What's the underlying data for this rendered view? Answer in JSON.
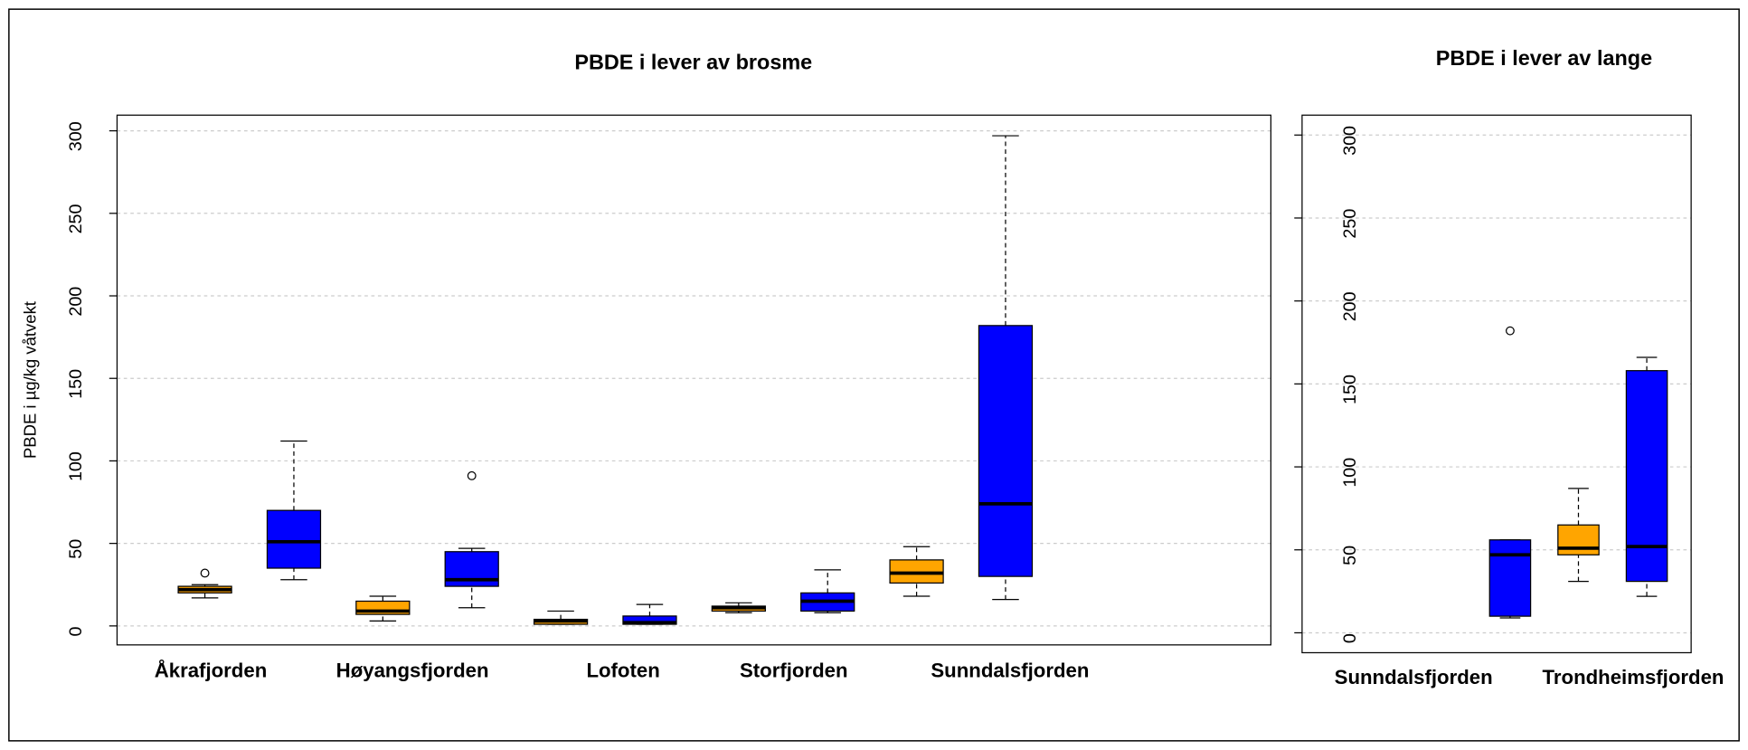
{
  "chart_data": [
    {
      "type": "box",
      "title": "PBDE i lever av brosme",
      "ylabel": "PBDE i µg/kg våtvekt",
      "categories": [
        "Åkrafjorden",
        "Høyangsfjorden",
        "Lofoten",
        "Storfjorden",
        "Sunndalsfjorden"
      ],
      "ylim": [
        -11.5,
        309.5
      ],
      "yticks": [
        0,
        50,
        100,
        150,
        200,
        250,
        300
      ],
      "grid": true,
      "series": [
        {
          "color": "#FFA500",
          "boxes": [
            {
              "whisker_low": 17,
              "q1": 20,
              "median": 22,
              "q3": 24,
              "whisker_high": 25,
              "outliers": [
                32
              ]
            },
            {
              "whisker_low": 3,
              "q1": 7,
              "median": 9,
              "q3": 15,
              "whisker_high": 18
            },
            {
              "whisker_low": 1,
              "q1": 1,
              "median": 3,
              "q3": 4,
              "whisker_high": 9
            },
            {
              "whisker_low": 8,
              "q1": 9,
              "median": 11,
              "q3": 12,
              "whisker_high": 14
            },
            {
              "whisker_low": 18,
              "q1": 26,
              "median": 32,
              "q3": 40,
              "whisker_high": 48
            }
          ]
        },
        {
          "color": "#0000FF",
          "boxes": [
            {
              "whisker_low": 28,
              "q1": 35,
              "median": 51,
              "q3": 70,
              "whisker_high": 112
            },
            {
              "whisker_low": 11,
              "q1": 24,
              "median": 28,
              "q3": 45,
              "whisker_high": 47,
              "outliers": [
                91
              ]
            },
            {
              "whisker_low": 1,
              "q1": 1,
              "median": 2,
              "q3": 6,
              "whisker_high": 13
            },
            {
              "whisker_low": 8,
              "q1": 9,
              "median": 15,
              "q3": 20,
              "whisker_high": 34
            },
            {
              "whisker_low": 16,
              "q1": 30,
              "median": 74,
              "q3": 182,
              "whisker_high": 297
            }
          ]
        }
      ]
    },
    {
      "type": "box",
      "title": "PBDE i lever av lange",
      "categories": [
        "Sunndalsfjorden",
        "Trondheimsfjorden"
      ],
      "ylim": [
        -12,
        312
      ],
      "yticks": [
        0,
        50,
        100,
        150,
        200,
        250,
        300
      ],
      "grid": true,
      "series": [
        {
          "color": "#FFA500",
          "boxes": [
            null,
            {
              "whisker_low": 31,
              "q1": 47,
              "median": 51,
              "q3": 65,
              "whisker_high": 87
            }
          ]
        },
        {
          "color": "#0000FF",
          "boxes": [
            {
              "whisker_low": 9,
              "q1": 10,
              "median": 47,
              "q3": 56,
              "whisker_high": 56,
              "outliers": [
                182
              ]
            },
            {
              "whisker_low": 22,
              "q1": 31,
              "median": 52,
              "q3": 158,
              "whisker_high": 166
            }
          ]
        }
      ]
    }
  ]
}
